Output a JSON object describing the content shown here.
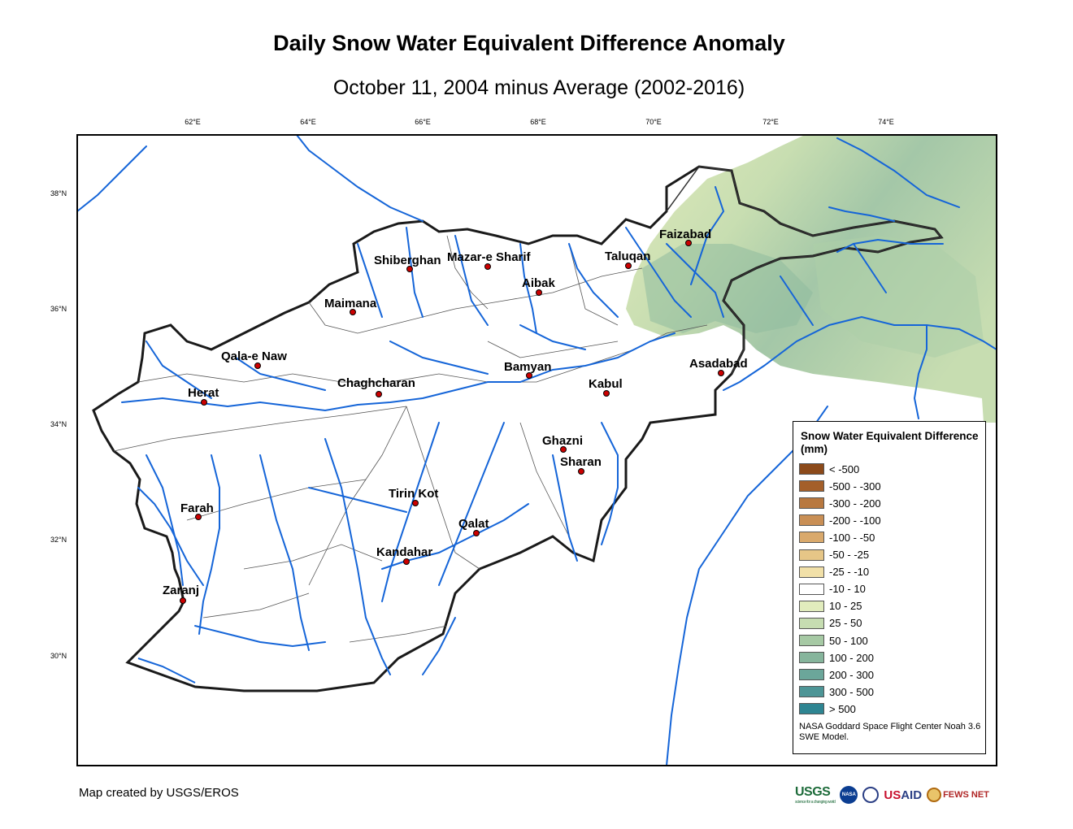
{
  "title": "Daily Snow Water Equivalent Difference Anomaly",
  "subtitle": "October 11, 2004 minus Average (2002-2016)",
  "credit": "Map created by USGS/EROS",
  "graticule": {
    "longitudes": [
      "62°E",
      "64°E",
      "66°E",
      "68°E",
      "70°E",
      "72°E",
      "74°E"
    ],
    "latitudes": [
      "38°N",
      "36°N",
      "34°N",
      "32°N",
      "30°N"
    ]
  },
  "cities": [
    {
      "name": "Faizabad"
    },
    {
      "name": "Taluqan"
    },
    {
      "name": "Shiberghan"
    },
    {
      "name": "Mazar-e Sharif"
    },
    {
      "name": "Aibak"
    },
    {
      "name": "Maimana"
    },
    {
      "name": "Qala-e Naw"
    },
    {
      "name": "Herat"
    },
    {
      "name": "Chaghcharan"
    },
    {
      "name": "Bamyan"
    },
    {
      "name": "Kabul"
    },
    {
      "name": "Asadabad"
    },
    {
      "name": "Ghazni"
    },
    {
      "name": "Sharan"
    },
    {
      "name": "Farah"
    },
    {
      "name": "Tirin Kot"
    },
    {
      "name": "Qalat"
    },
    {
      "name": "Kandahar"
    },
    {
      "name": "Zaranj"
    }
  ],
  "legend": {
    "title": "Snow Water Equivalent Difference (mm)",
    "items": [
      {
        "label": "< -500",
        "color": "#8c4a1a"
      },
      {
        "label": "-500 - -300",
        "color": "#a45f2a"
      },
      {
        "label": "-300 - -200",
        "color": "#b8783f"
      },
      {
        "label": "-200 - -100",
        "color": "#c98f55"
      },
      {
        "label": "-100 - -50",
        "color": "#d9a96c"
      },
      {
        "label": "-50 - -25",
        "color": "#e6c687"
      },
      {
        "label": "-25 - -10",
        "color": "#f1e0a8"
      },
      {
        "label": "-10 - 10",
        "color": "#ffffff"
      },
      {
        "label": "10 - 25",
        "color": "#e1ecbd"
      },
      {
        "label": "25 - 50",
        "color": "#c6ddb1"
      },
      {
        "label": "50 - 100",
        "color": "#a6c9a4"
      },
      {
        "label": "100 - 200",
        "color": "#86b59c"
      },
      {
        "label": "200 - 300",
        "color": "#6ba69a"
      },
      {
        "label": "300 - 500",
        "color": "#4d9596"
      },
      {
        "label": "> 500",
        "color": "#2e8592"
      }
    ],
    "source": "NASA Goddard Space Flight Center Noah 3.6 SWE Model."
  },
  "logos": {
    "usgs": "USGS",
    "usgs_tagline": "science for a changing world",
    "nasa": "NASA",
    "usaid_us": "US",
    "usaid_aid": "AID",
    "fews": "FEWS NET"
  }
}
